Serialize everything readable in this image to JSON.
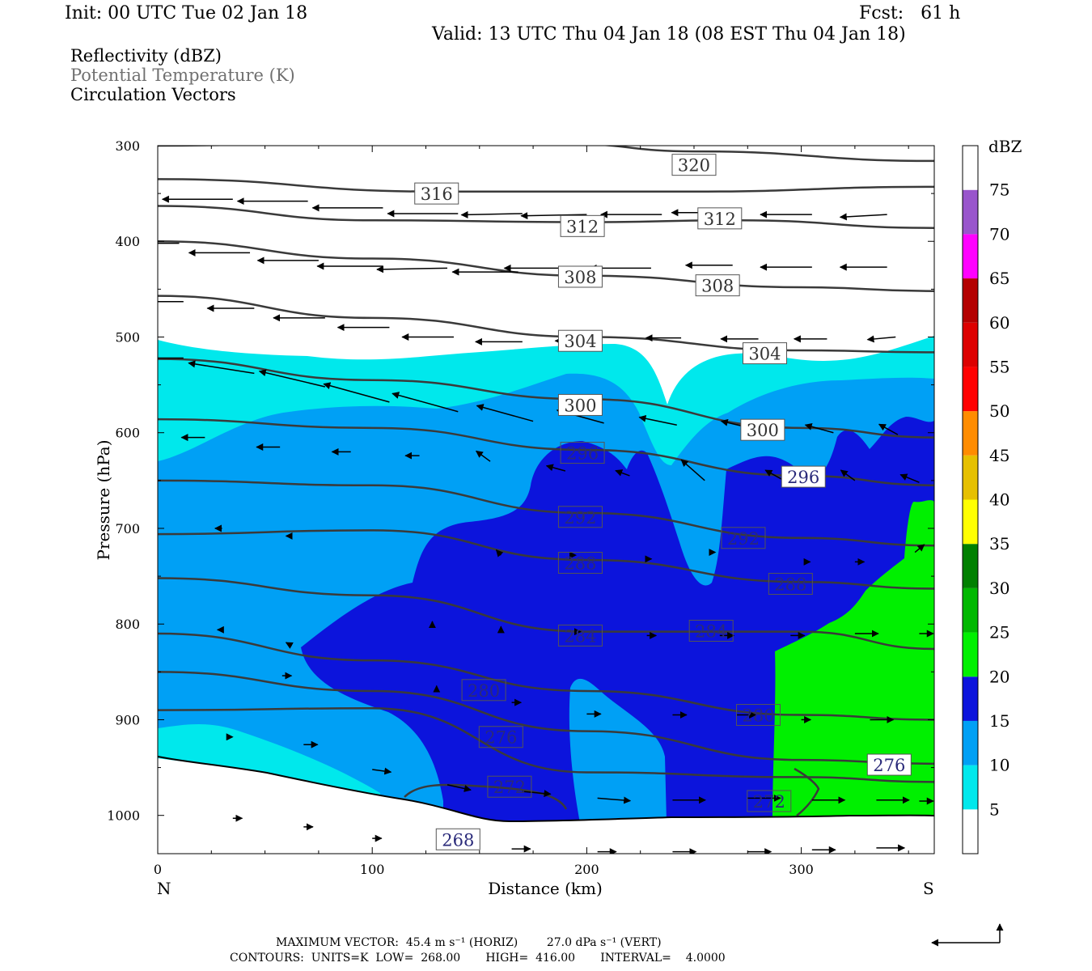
{
  "header": {
    "init": "Init: 00 UTC Tue 02 Jan 18",
    "fcst": "Fcst:   61 h",
    "valid": "Valid: 13 UTC Thu 04 Jan 18 (08 EST Thu 04 Jan 18)"
  },
  "legend_lines": {
    "reflectivity": "Reflectivity (dBZ)",
    "theta": "Potential Temperature (K)",
    "vectors": "Circulation Vectors"
  },
  "footer": {
    "max_vector": "MAXIMUM VECTOR:  45.4 m s⁻¹ (HORIZ)        27.0 dPa s⁻¹ (VERT)",
    "contours": "CONTOURS:  UNITS=K  LOW=  268.00       HIGH=  416.00       INTERVAL=    4.0000"
  },
  "colors": {
    "c5": "#00e8ec",
    "c10": "#00a0f5",
    "c15": "#0c14dc",
    "c20": "#00f000",
    "contour": "#3a3a3a"
  },
  "chart_data": {
    "type": "cross-section",
    "xlabel": "Distance (km)",
    "ylabel": "Pressure (hPa)",
    "xlim": [
      0,
      362
    ],
    "ylim": [
      1040,
      300
    ],
    "x_ticks": [
      "0",
      "100",
      "200",
      "300"
    ],
    "y_ticks": [
      "300",
      "400",
      "500",
      "600",
      "700",
      "800",
      "900",
      "1000"
    ],
    "x_end_labels": {
      "left": "N",
      "right": "S"
    },
    "colorbar": {
      "title": "dBZ",
      "labels": [
        "5",
        "10",
        "15",
        "20",
        "25",
        "30",
        "35",
        "40",
        "45",
        "50",
        "55",
        "60",
        "65",
        "70",
        "75"
      ],
      "colors": [
        "#ffffff",
        "#00e8ec",
        "#00a0f5",
        "#0c14dc",
        "#00f000",
        "#00b800",
        "#008000",
        "#ffff00",
        "#e6c000",
        "#ff8c00",
        "#ff0000",
        "#dd0000",
        "#b40000",
        "#ff00ff",
        "#9955cc",
        "#ffffff"
      ]
    },
    "theta_labels": [
      {
        "text": "320",
        "x": 250,
        "p": 320
      },
      {
        "text": "316",
        "x": 130,
        "p": 350
      },
      {
        "text": "312",
        "x": 198,
        "p": 384
      },
      {
        "text": "312",
        "x": 262,
        "p": 376
      },
      {
        "text": "308",
        "x": 197,
        "p": 437
      },
      {
        "text": "308",
        "x": 261,
        "p": 446
      },
      {
        "text": "304",
        "x": 197,
        "p": 504
      },
      {
        "text": "304",
        "x": 283,
        "p": 517
      },
      {
        "text": "300",
        "x": 197,
        "p": 571
      },
      {
        "text": "300",
        "x": 282,
        "p": 597
      },
      {
        "text": "296",
        "x": 198,
        "p": 621
      },
      {
        "text": "296",
        "x": 301,
        "p": 646
      },
      {
        "text": "292",
        "x": 197,
        "p": 688
      },
      {
        "text": "292",
        "x": 273,
        "p": 710
      },
      {
        "text": "288",
        "x": 197,
        "p": 736
      },
      {
        "text": "288",
        "x": 295,
        "p": 758
      },
      {
        "text": "284",
        "x": 197,
        "p": 812
      },
      {
        "text": "284",
        "x": 258,
        "p": 807
      },
      {
        "text": "280",
        "x": 152,
        "p": 869
      },
      {
        "text": "280",
        "x": 280,
        "p": 895
      },
      {
        "text": "276",
        "x": 160,
        "p": 918
      },
      {
        "text": "276",
        "x": 341,
        "p": 947
      },
      {
        "text": "272",
        "x": 164,
        "p": 970
      },
      {
        "text": "272",
        "x": 285,
        "p": 985
      },
      {
        "text": "268",
        "x": 140,
        "p": 1025
      }
    ]
  }
}
